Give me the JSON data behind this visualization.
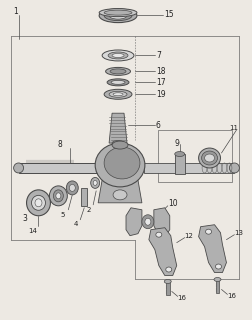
{
  "bg_color": "#ede9e3",
  "lc": "#4a4a4a",
  "lc2": "#666666",
  "gray1": "#c8c8c8",
  "gray2": "#b0b0b0",
  "gray3": "#989898",
  "gray4": "#d8d8d8",
  "white": "#e8e8e8",
  "figsize": [
    2.53,
    3.2
  ],
  "dpi": 100,
  "xlim": [
    0,
    253
  ],
  "ylim": [
    0,
    320
  ]
}
